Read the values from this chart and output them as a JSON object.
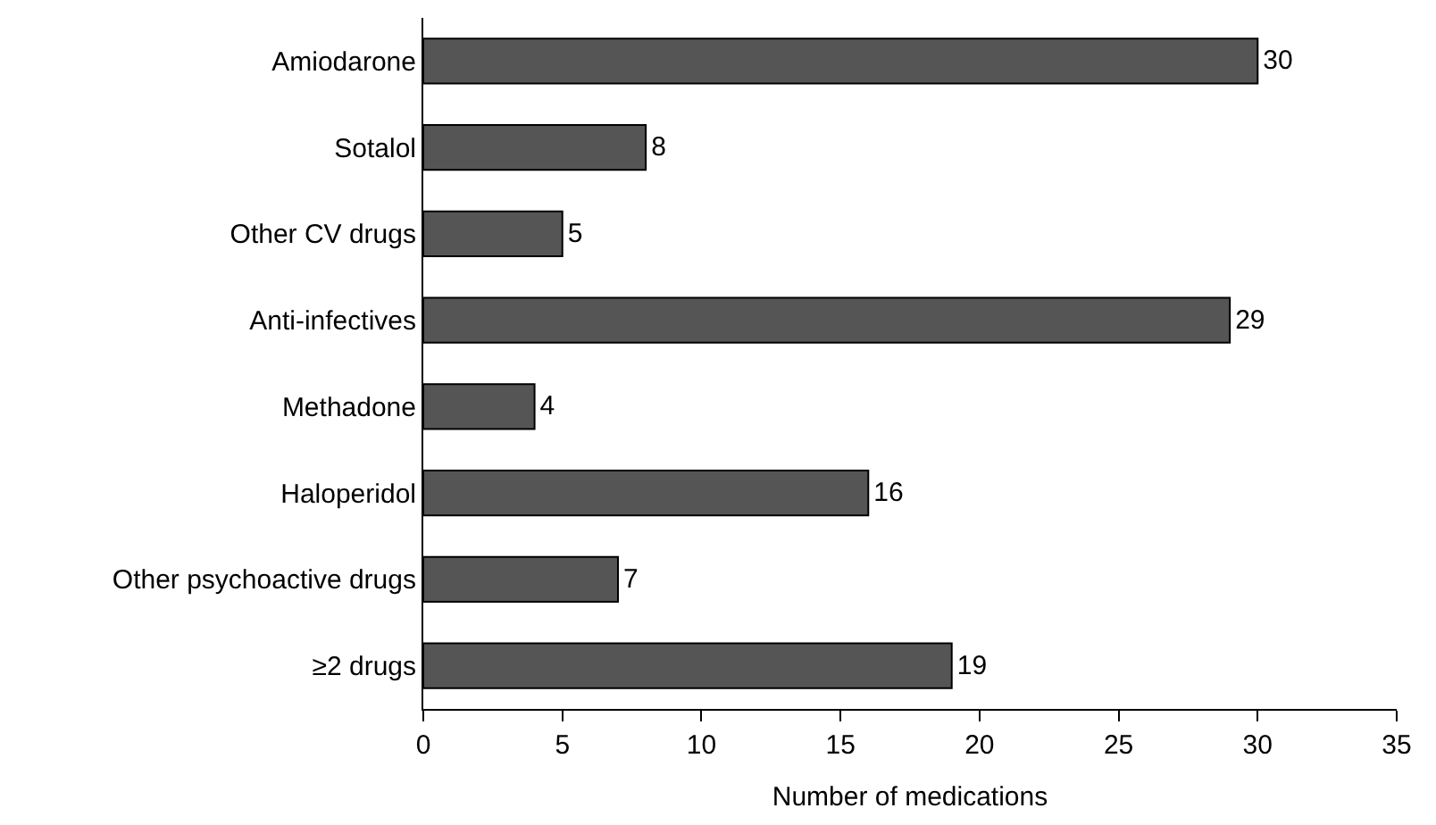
{
  "chart_data": {
    "type": "bar",
    "orientation": "horizontal",
    "xlabel": "Number of medications",
    "categories": [
      "Amiodarone",
      "Sotalol",
      "Other CV drugs",
      "Anti-infectives",
      "Methadone",
      "Haloperidol",
      "Other psychoactive drugs",
      "≥2 drugs"
    ],
    "values": [
      30,
      8,
      5,
      29,
      4,
      16,
      7,
      19
    ],
    "color": "#555555",
    "xlim": [
      0,
      35
    ],
    "xticks": [
      0,
      5,
      10,
      15,
      20,
      25,
      30,
      35
    ],
    "legend": false,
    "data_labels": true
  }
}
